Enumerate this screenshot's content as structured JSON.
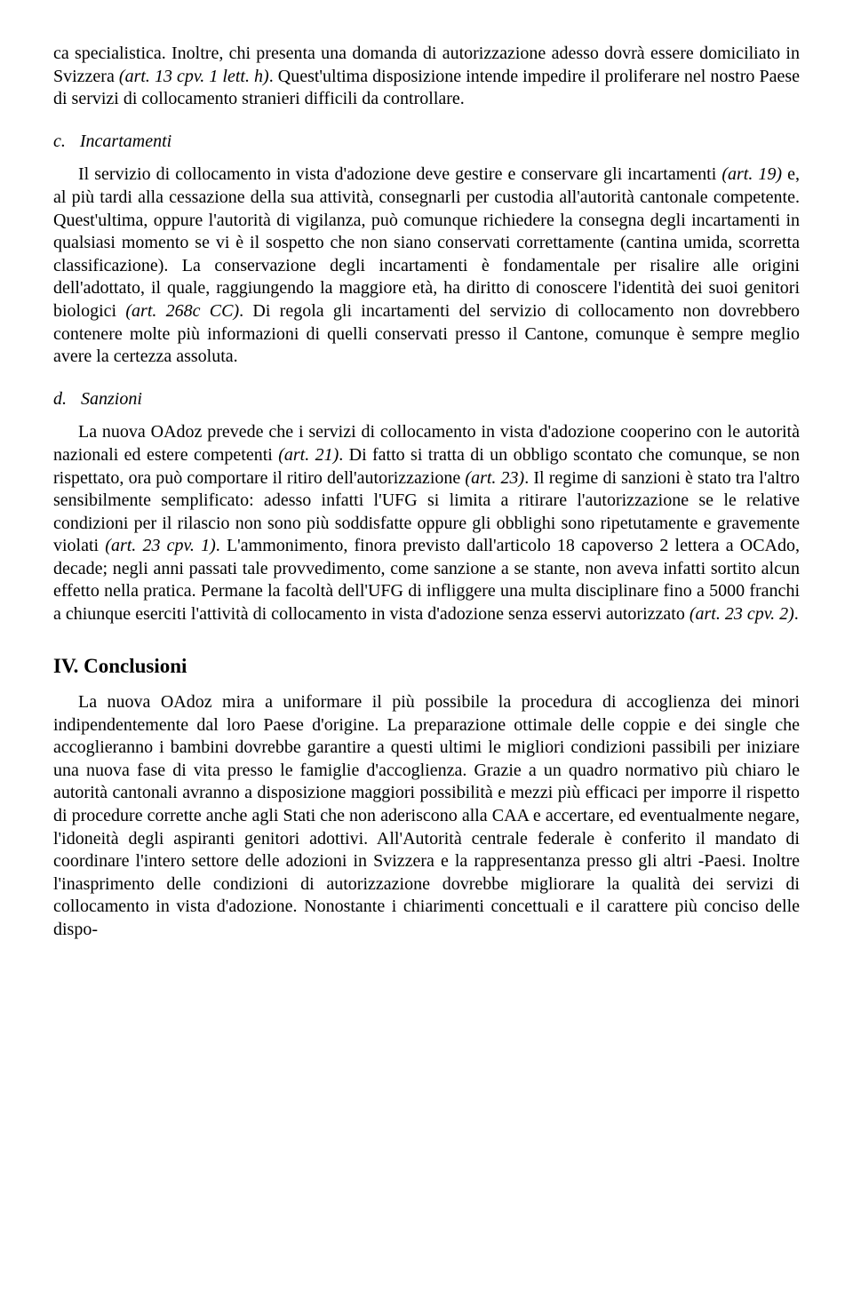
{
  "col": "#000000",
  "p1": "ca specialistica. Inoltre, chi presenta una domanda di autorizzazione adesso dovrà essere domiciliato in Svizzera ",
  "p1i": "(art. 13 cpv. 1 lett. h)",
  "p1b": ". Quest'ultima disposizione intende impedire il proliferare nel nostro Paese di servizi di collocamento stranieri difficili da controllare.",
  "sc_let": "c.",
  "sc_tit": "Incartamenti",
  "p2a": "Il servizio di collocamento in vista d'adozione deve gestire e conservare gli incartamenti ",
  "p2i1": "(art. 19)",
  "p2b": " e, al più tardi alla cessazione della sua attività, consegnarli per custodia all'autorità cantonale competente. Quest'ultima, oppure l'autorità di vigilanza, può comunque richiedere la consegna degli incartamenti in qualsiasi momento se vi è il sospetto che non siano conservati correttamente (cantina umida, scorretta classificazione). La conservazione degli incartamenti è fondamentale per risalire alle origini dell'adottato, il quale, raggiungendo la maggiore età, ha diritto di conoscere l'identità dei suoi genitori biologici ",
  "p2i2": "(art. 268c CC)",
  "p2c": ". Di regola gli incartamenti del servizio di collocamento non dovrebbero contenere molte più informazioni di quelli conservati presso il Cantone, comunque è sempre meglio avere la certezza assoluta.",
  "sd_let": "d.",
  "sd_tit": "Sanzioni",
  "p3a": "La nuova OAdoz prevede che i servizi di collocamento in vista d'adozione cooperino con le autorità nazionali ed estere competenti ",
  "p3i1": "(art. 21)",
  "p3b": ". Di fatto si tratta di un obbligo scontato che comunque, se non rispettato, ora può comportare il ritiro dell'autorizzazione ",
  "p3i2": "(art. 23)",
  "p3c": ". Il regime di sanzioni è stato tra l'altro sensibilmente semplificato: adesso infatti l'UFG si limita a ritirare l'autorizzazione se le relative condizioni per il rilascio non sono più soddisfatte oppure gli obblighi sono ripetutamente e gravemente violati ",
  "p3i3": "(art. 23 cpv. 1)",
  "p3d": ". L'ammonimento, finora previsto dall'articolo 18 capoverso 2 lettera a OCAdo, decade; negli anni passati tale provvedimento, come sanzione a se stante, non aveva infatti sortito alcun effetto nella pratica. Permane la facoltà dell'UFG di infliggere una multa disciplinare fino a 5000 franchi a chiunque eserciti l'attività di collocamento in vista d'adozione senza esservi autorizzato ",
  "p3i4": "(art. 23 cpv. 2)",
  "p3e": ".",
  "h2": "IV. Conclusioni",
  "p4": "La nuova OAdoz mira a uniformare il più possibile la procedura di accoglienza dei minori indipendentemente dal loro Paese d'origine. La preparazione ottimale delle coppie e dei single che accoglieranno i bambini dovrebbe garantire a questi ultimi le migliori condizioni passibili per iniziare una nuova fase di vita presso le famiglie d'accoglienza. Grazie a un quadro normativo più chiaro le autorità cantonali avranno a disposizione maggiori possibilità e mezzi più efficaci per imporre il rispetto di procedure corrette anche agli Stati che non aderiscono alla CAA e accertare, ed eventualmente negare, l'idoneità degli aspiranti genitori adottivi. All'Autorità centrale federale è conferito il mandato di coordinare l'intero settore delle adozioni in Svizzera e la rappresentanza presso gli altri -Paesi. Inoltre l'inasprimento delle condizioni di autorizzazione dovrebbe migliorare la qualità dei servizi di collocamento in vista d'adozione. Nonostante i chiarimenti concettuali e il carattere più conciso delle dispo-"
}
